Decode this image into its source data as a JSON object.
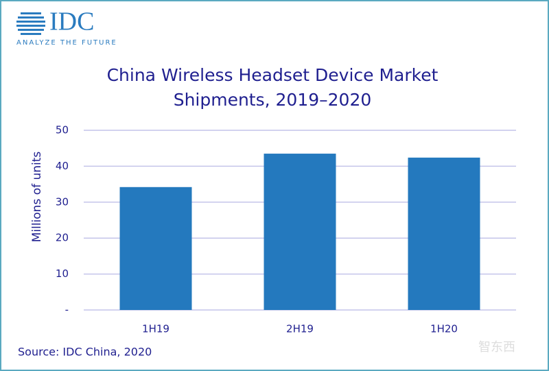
{
  "logo": {
    "name": "IDC",
    "tagline": "ANALYZE THE FUTURE"
  },
  "watermark": "智东西",
  "chart_data": {
    "type": "bar",
    "title": "China Wireless Headset Device Market Shipments, 2019–2020",
    "y_label": "Millions of units",
    "categories": [
      "1H19",
      "2H19",
      "1H20"
    ],
    "values": [
      34.2,
      43.5,
      42.4
    ],
    "color": "#2479be",
    "ylim": [
      0,
      50
    ],
    "yticks": [
      {
        "value": 0,
        "label": "-"
      },
      10,
      20,
      30,
      40,
      50
    ],
    "grid": true,
    "source": "Source: IDC China, 2020"
  }
}
